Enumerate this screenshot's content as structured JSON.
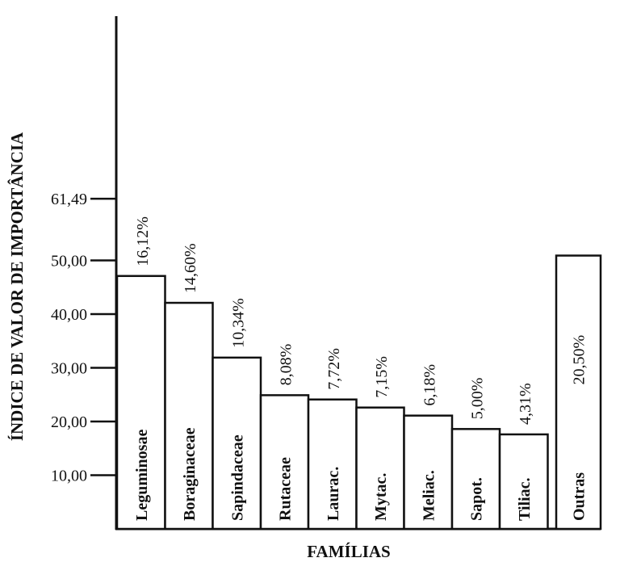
{
  "chart_data": {
    "type": "bar",
    "ylabel": "ÍNDICE DE VALOR DE IMPORTÂNCIA",
    "xlabel": "FAMÍLIAS",
    "y_ticks": [
      {
        "value": 10,
        "label": "10,00"
      },
      {
        "value": 20,
        "label": "20,00"
      },
      {
        "value": 30,
        "label": "30,00"
      },
      {
        "value": 40,
        "label": "40,00"
      },
      {
        "value": 50,
        "label": "50,00"
      },
      {
        "value": 61.49,
        "label": "61,49"
      }
    ],
    "ylim": [
      0,
      61.49
    ],
    "grid": false,
    "categories": [
      "Leguminosae",
      "Boraginaceae",
      "Sapindaceae",
      "Rutaceae",
      "Laurac.",
      "Mytac.",
      "Meliac.",
      "Sapot.",
      "Tiliac.",
      "Outras"
    ],
    "values": [
      47.1,
      42.1,
      31.9,
      24.9,
      24.1,
      22.6,
      21.1,
      18.6,
      17.6,
      50.9
    ],
    "data_labels": [
      "16,12%",
      "14,60%",
      "10,34%",
      "8,08%",
      "7,72%",
      "7,15%",
      "6,18%",
      "5,00%",
      "4,31%",
      "20,50%"
    ]
  }
}
